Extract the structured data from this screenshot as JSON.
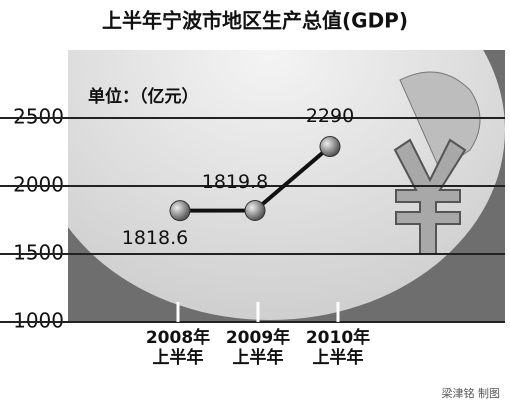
{
  "chart_data": {
    "type": "line",
    "title": "上半年宁波市地区生产总值(GDP)",
    "unit_label": "单位：（亿元）",
    "categories": [
      "2008年\n上半年",
      "2009年\n上半年",
      "2010年\n上半年"
    ],
    "values": [
      1818.6,
      1819.8,
      2290
    ],
    "color": "#111111",
    "ylim": [
      1000,
      3000
    ],
    "yticks": [
      1000,
      1500,
      2000,
      2500
    ],
    "grid": true,
    "credit": "梁津铭 制图"
  }
}
